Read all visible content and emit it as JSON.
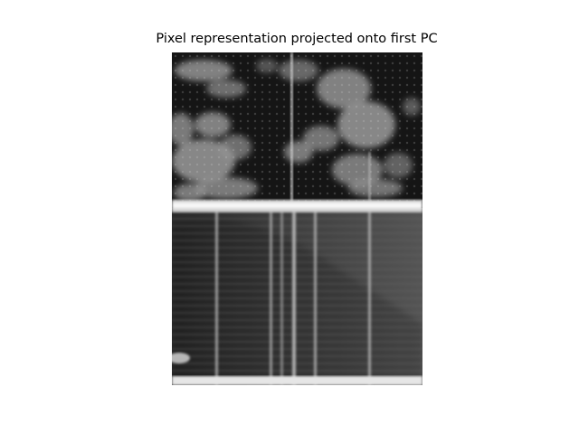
{
  "title": "Pixel representation projected onto first PC",
  "image": {
    "description_icon": "grayscale-pixel-image",
    "colormap": "gray"
  }
}
